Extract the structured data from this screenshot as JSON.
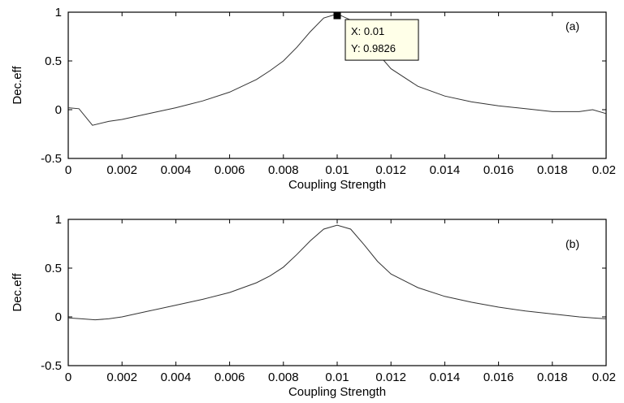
{
  "chart_data": [
    {
      "type": "line",
      "panel_label": "(a)",
      "xlabel": "Coupling Strength",
      "ylabel": "Dec.eff",
      "xlim": [
        0,
        0.02
      ],
      "ylim": [
        -0.5,
        1
      ],
      "xticks": [
        "0",
        "0.002",
        "0.004",
        "0.006",
        "0.008",
        "0.01",
        "0.012",
        "0.014",
        "0.016",
        "0.018",
        "0.02"
      ],
      "yticks": [
        "-0.5",
        "0",
        "0.5",
        "1"
      ],
      "grid": false,
      "series": [
        {
          "x": [
            0,
            0.0004,
            0.0009,
            0.0015,
            0.002,
            0.003,
            0.004,
            0.005,
            0.006,
            0.007,
            0.0075,
            0.008,
            0.0085,
            0.009,
            0.0095,
            0.01,
            0.0105,
            0.011,
            0.0115,
            0.012,
            0.013,
            0.014,
            0.015,
            0.016,
            0.017,
            0.018,
            0.0185,
            0.019,
            0.0195,
            0.02
          ],
          "y": [
            0.02,
            0.01,
            -0.16,
            -0.12,
            -0.1,
            -0.04,
            0.02,
            0.09,
            0.18,
            0.31,
            0.4,
            0.5,
            0.64,
            0.8,
            0.94,
            0.9826,
            0.92,
            0.76,
            0.58,
            0.42,
            0.24,
            0.14,
            0.08,
            0.04,
            0.01,
            -0.02,
            -0.02,
            -0.02,
            0.0,
            -0.04
          ]
        }
      ],
      "datatip": {
        "x_text": "X: 0.01",
        "y_text": "Y: 0.9826",
        "x": 0.01,
        "y": 0.9826
      }
    },
    {
      "type": "line",
      "panel_label": "(b)",
      "xlabel": "Coupling Strength",
      "ylabel": "Dec.eff",
      "xlim": [
        0,
        0.02
      ],
      "ylim": [
        -0.5,
        1
      ],
      "xticks": [
        "0",
        "0.002",
        "0.004",
        "0.006",
        "0.008",
        "0.01",
        "0.012",
        "0.014",
        "0.016",
        "0.018",
        "0.02"
      ],
      "yticks": [
        "-0.5",
        "0",
        "0.5",
        "1"
      ],
      "grid": false,
      "series": [
        {
          "x": [
            0,
            0.0005,
            0.001,
            0.0015,
            0.002,
            0.003,
            0.004,
            0.005,
            0.006,
            0.007,
            0.0075,
            0.008,
            0.0085,
            0.009,
            0.0095,
            0.01,
            0.0105,
            0.011,
            0.0115,
            0.012,
            0.013,
            0.014,
            0.015,
            0.016,
            0.017,
            0.018,
            0.019,
            0.0195,
            0.02
          ],
          "y": [
            -0.01,
            -0.02,
            -0.03,
            -0.02,
            0.0,
            0.06,
            0.12,
            0.18,
            0.25,
            0.35,
            0.42,
            0.51,
            0.64,
            0.78,
            0.9,
            0.94,
            0.9,
            0.74,
            0.57,
            0.44,
            0.3,
            0.21,
            0.15,
            0.1,
            0.06,
            0.03,
            0.0,
            -0.01,
            -0.02
          ]
        }
      ]
    }
  ]
}
